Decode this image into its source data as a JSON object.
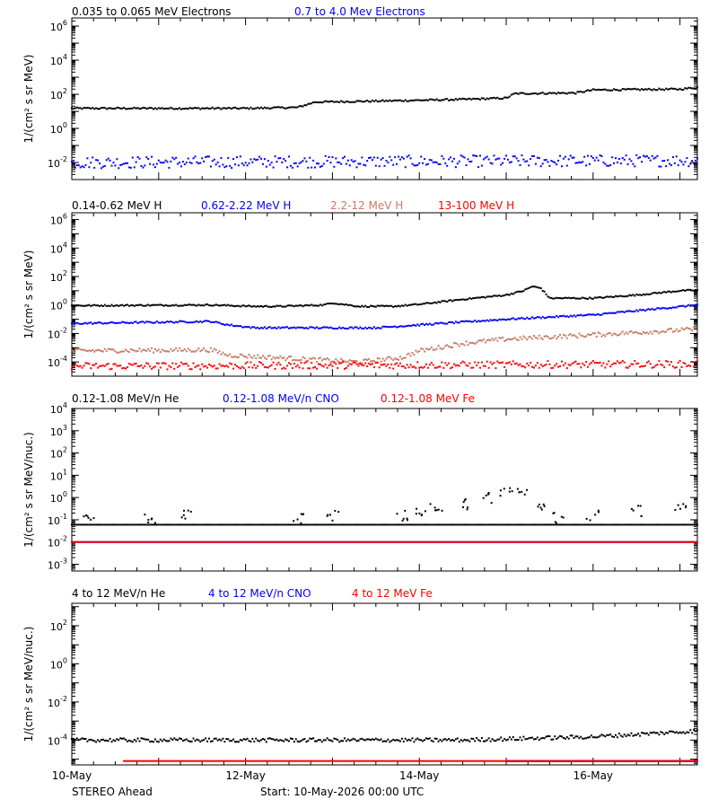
{
  "figure": {
    "footer_left": "STEREO Ahead",
    "footer_center": "Start: 10-May-2026 00:00 UTC",
    "x_ticks": [
      "10-May",
      "12-May",
      "14-May",
      "16-May"
    ]
  },
  "chart_data": [
    {
      "type": "scatter",
      "ylabel": "1/(cm² s sr MeV)",
      "y_scale": "log",
      "ylim": [
        0.001,
        3000000
      ],
      "y_ticks": [
        {
          "v": 1000000.0,
          "m": "10",
          "e": "6"
        },
        {
          "v": 10000.0,
          "m": "10",
          "e": "4"
        },
        {
          "v": 100.0,
          "m": "10",
          "e": "2"
        },
        {
          "v": 1,
          "m": "10",
          "e": "0"
        },
        {
          "v": 0.01,
          "m": "10",
          "e": "-2"
        }
      ],
      "legend": [
        "0.035 to 0.065 MeV Electrons",
        "0.7 to 4.0 Mev Electrons"
      ],
      "series": [
        {
          "name": "0.035 to 0.065 MeV Electrons",
          "color": "#000000",
          "profile": [
            [
              0,
              15
            ],
            [
              1,
              15
            ],
            [
              2,
              15
            ],
            [
              2.6,
              17
            ],
            [
              2.8,
              35
            ],
            [
              3.5,
              40
            ],
            [
              4.5,
              50
            ],
            [
              5.0,
              60
            ],
            [
              5.1,
              110
            ],
            [
              5.8,
              120
            ],
            [
              6.0,
              180
            ],
            [
              7.0,
              200
            ],
            [
              7.2,
              250
            ]
          ],
          "scatter_dex": 0.05,
          "markers": true
        },
        {
          "name": "0.7 to 4.0 Mev Electrons",
          "color": "#0000ff",
          "profile": [
            [
              0,
              0.01
            ],
            [
              7.2,
              0.013
            ]
          ],
          "scatter_dex": 0.35,
          "markers": true
        }
      ]
    },
    {
      "type": "scatter",
      "ylabel": "1/(cm² s sr MeV)",
      "y_scale": "log",
      "ylim": [
        1e-05,
        3000000
      ],
      "y_ticks": [
        {
          "v": 1000000.0,
          "m": "10",
          "e": "6"
        },
        {
          "v": 10000.0,
          "m": "10",
          "e": "4"
        },
        {
          "v": 100.0,
          "m": "10",
          "e": "2"
        },
        {
          "v": 1,
          "m": "10",
          "e": "0"
        },
        {
          "v": 0.01,
          "m": "10",
          "e": "-2"
        },
        {
          "v": 0.0001,
          "m": "10",
          "e": "-4"
        }
      ],
      "legend": [
        "0.14-0.62 MeV H",
        "0.62-2.22 MeV H",
        "2.2-12 MeV H",
        "13-100 MeV H"
      ],
      "series": [
        {
          "name": "0.14-0.62 MeV H",
          "color": "#000000",
          "profile": [
            [
              0,
              0.9
            ],
            [
              1.6,
              1
            ],
            [
              2.1,
              0.8
            ],
            [
              2.4,
              0.8
            ],
            [
              2.9,
              1.0
            ],
            [
              3.0,
              1.4
            ],
            [
              3.3,
              0.8
            ],
            [
              3.7,
              0.8
            ],
            [
              4.0,
              1.1
            ],
            [
              4.5,
              2.5
            ],
            [
              5.0,
              5
            ],
            [
              5.2,
              10
            ],
            [
              5.3,
              20
            ],
            [
              5.4,
              15
            ],
            [
              5.5,
              3
            ],
            [
              6.0,
              3
            ],
            [
              6.5,
              5
            ],
            [
              7.0,
              10
            ],
            [
              7.2,
              11
            ]
          ],
          "scatter_dex": 0.05,
          "markers": true
        },
        {
          "name": "0.62-2.22 MeV H",
          "color": "#0000ff",
          "profile": [
            [
              0,
              0.05
            ],
            [
              1.6,
              0.07
            ],
            [
              1.8,
              0.04
            ],
            [
              2.1,
              0.025
            ],
            [
              3.5,
              0.025
            ],
            [
              4.0,
              0.04
            ],
            [
              5.0,
              0.1
            ],
            [
              6.0,
              0.2
            ],
            [
              7.2,
              1.0
            ]
          ],
          "scatter_dex": 0.06,
          "markers": true
        },
        {
          "name": "2.2-12 MeV H",
          "color": "#c87b65",
          "profile": [
            [
              0,
              0.0006
            ],
            [
              1.6,
              0.0007
            ],
            [
              1.8,
              0.0003
            ],
            [
              3.3,
              0.0001
            ],
            [
              3.8,
              0.0002
            ],
            [
              4.0,
              0.0006
            ],
            [
              4.5,
              0.002
            ],
            [
              5.0,
              0.004
            ],
            [
              6.0,
              0.008
            ],
            [
              7.2,
              0.02
            ]
          ],
          "scatter_dex": 0.15,
          "markers": true
        },
        {
          "name": "13-100 MeV H",
          "color": "#ff0000",
          "profile": [
            [
              0,
              5e-05
            ],
            [
              7.2,
              7e-05
            ]
          ],
          "scatter_dex": 0.25,
          "markers": true
        }
      ]
    },
    {
      "type": "scatter",
      "ylabel": "1/(cm² s sr MeV/nuc.)",
      "y_scale": "log",
      "ylim": [
        0.0005,
        10000
      ],
      "y_ticks": [
        {
          "v": 10000.0,
          "m": "10",
          "e": "4"
        },
        {
          "v": 1000.0,
          "m": "10",
          "e": "3"
        },
        {
          "v": 100.0,
          "m": "10",
          "e": "2"
        },
        {
          "v": 10.0,
          "m": "10",
          "e": "1"
        },
        {
          "v": 1,
          "m": "10",
          "e": "0"
        },
        {
          "v": 0.1,
          "m": "10",
          "e": "-1"
        },
        {
          "v": 0.01,
          "m": "10",
          "e": "-2"
        },
        {
          "v": 0.001,
          "m": "10",
          "e": "-3"
        }
      ],
      "legend": [
        "0.12-1.08 MeV/n He",
        "0.12-1.08 MeV/n CNO",
        "0.12-1.08 MeV Fe"
      ],
      "series": [
        {
          "name": "0.12-1.08 MeV/n He",
          "color": "#000000",
          "profile": [
            [
              0,
              0.06
            ],
            [
              7.2,
              0.06
            ]
          ],
          "scatter_dex": 0.0,
          "markers": true,
          "extras": [
            [
              0.2,
              0.1
            ],
            [
              0.9,
              0.12
            ],
            [
              1.3,
              0.15
            ],
            [
              2.6,
              0.12
            ],
            [
              3.0,
              0.15
            ],
            [
              3.8,
              0.15
            ],
            [
              4.0,
              0.2
            ],
            [
              4.2,
              0.3
            ],
            [
              4.5,
              0.5
            ],
            [
              4.8,
              1.0
            ],
            [
              5.0,
              1.5
            ],
            [
              5.2,
              2.0
            ],
            [
              5.4,
              0.5
            ],
            [
              5.6,
              0.12
            ],
            [
              6.0,
              0.15
            ],
            [
              6.5,
              0.25
            ],
            [
              7.0,
              0.3
            ]
          ]
        },
        {
          "name": "0.12-1.08 MeV/n CNO",
          "color": "#0000ff",
          "profile": [
            [
              0,
              0.01
            ],
            [
              7.2,
              0.01
            ]
          ],
          "scatter_dex": 0.0,
          "markers": true
        },
        {
          "name": "0.12-1.08 MeV Fe",
          "color": "#ff0000",
          "profile": [
            [
              0,
              0.01
            ],
            [
              7.2,
              0.01
            ]
          ],
          "scatter_dex": 0.0,
          "markers": true
        }
      ]
    },
    {
      "type": "scatter",
      "ylabel": "1/(cm² s sr MeV/nuc.)",
      "y_scale": "log",
      "ylim": [
        5e-06,
        1500
      ],
      "y_ticks": [
        {
          "v": 100.0,
          "m": "10",
          "e": "2"
        },
        {
          "v": 1,
          "m": "10",
          "e": "0"
        },
        {
          "v": 0.01,
          "m": "10",
          "e": "-2"
        },
        {
          "v": 0.0001,
          "m": "10",
          "e": "-4"
        }
      ],
      "legend": [
        "4 to 12 MeV/n He",
        "4 to 12 MeV/n CNO",
        "4 to 12 MeV Fe"
      ],
      "series": [
        {
          "name": "4 to 12 MeV/n He",
          "color": "#000000",
          "profile": [
            [
              0,
              0.0001
            ],
            [
              4.5,
              0.0001
            ],
            [
              6.0,
              0.00015
            ],
            [
              7.2,
              0.0003
            ]
          ],
          "scatter_dex": 0.1,
          "markers": true
        },
        {
          "name": "4 to 12 MeV/n CNO",
          "color": "#0000ff",
          "profile": [
            [
              5.0,
              8e-06
            ],
            [
              7.2,
              8e-06
            ]
          ],
          "scatter_dex": 0.0,
          "markers": true
        },
        {
          "name": "4 to 12 MeV Fe",
          "color": "#ff0000",
          "profile": [
            [
              0.6,
              8e-06
            ],
            [
              7.2,
              8e-06
            ]
          ],
          "scatter_dex": 0.0,
          "markers": true
        }
      ]
    }
  ]
}
